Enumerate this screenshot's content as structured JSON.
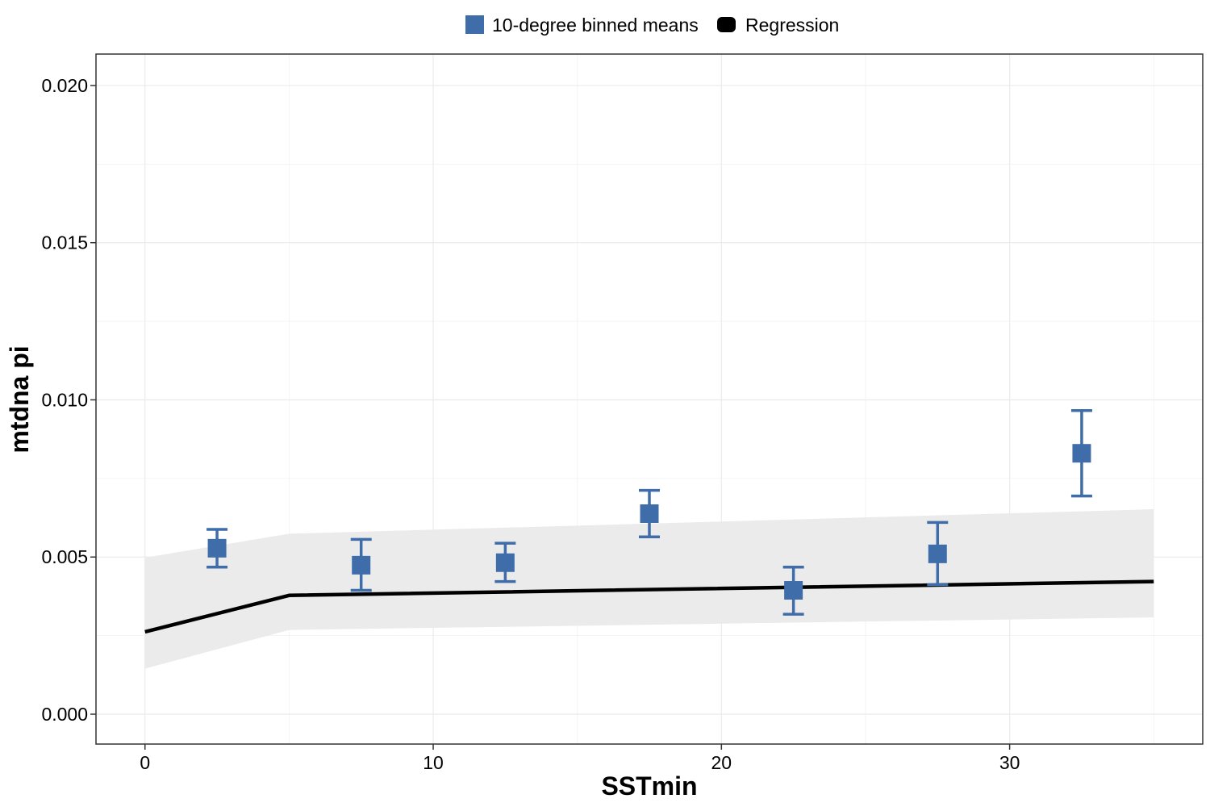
{
  "chart_data": {
    "type": "scatter",
    "xlabel": "SSTmin",
    "ylabel": "mtdna pi",
    "xlim": [
      -1.7,
      36.7
    ],
    "ylim": [
      -0.00095,
      0.021
    ],
    "x_ticks": [
      0,
      10,
      20,
      30
    ],
    "x_tick_labels": [
      "0",
      "10",
      "20",
      "30"
    ],
    "y_ticks": [
      0,
      0.005,
      0.01,
      0.015,
      0.02
    ],
    "y_tick_labels": [
      "0.000",
      "0.005",
      "0.010",
      "0.015",
      "0.020"
    ],
    "grid": true,
    "legend_position": "top",
    "legend": [
      {
        "label": "10-degree binned means",
        "color": "#3F6DAA",
        "shape": "square"
      },
      {
        "label": "Regression",
        "color": "#000000",
        "shape": "square"
      }
    ],
    "series": [
      {
        "name": "10-degree binned means",
        "kind": "points_with_errorbars",
        "color": "#3F6DAA",
        "points": [
          {
            "x": 2.5,
            "y": 0.00528,
            "ymin": 0.00468,
            "ymax": 0.00588
          },
          {
            "x": 7.5,
            "y": 0.00474,
            "ymin": 0.00394,
            "ymax": 0.00556
          },
          {
            "x": 12.5,
            "y": 0.00482,
            "ymin": 0.00422,
            "ymax": 0.00544
          },
          {
            "x": 17.5,
            "y": 0.00638,
            "ymin": 0.00564,
            "ymax": 0.00712
          },
          {
            "x": 22.5,
            "y": 0.00394,
            "ymin": 0.00318,
            "ymax": 0.00468
          },
          {
            "x": 27.5,
            "y": 0.0051,
            "ymin": 0.00412,
            "ymax": 0.0061
          },
          {
            "x": 32.5,
            "y": 0.0083,
            "ymin": 0.00694,
            "ymax": 0.00966
          }
        ]
      },
      {
        "name": "Regression",
        "kind": "line_with_ribbon",
        "color": "#000000",
        "ribbon_color": "#EBEBEB",
        "x": [
          0,
          5,
          35
        ],
        "y": [
          0.00262,
          0.00378,
          0.00422
        ],
        "lower": [
          0.00145,
          0.00268,
          0.00308
        ],
        "upper": [
          0.00498,
          0.00574,
          0.00652
        ]
      }
    ]
  }
}
